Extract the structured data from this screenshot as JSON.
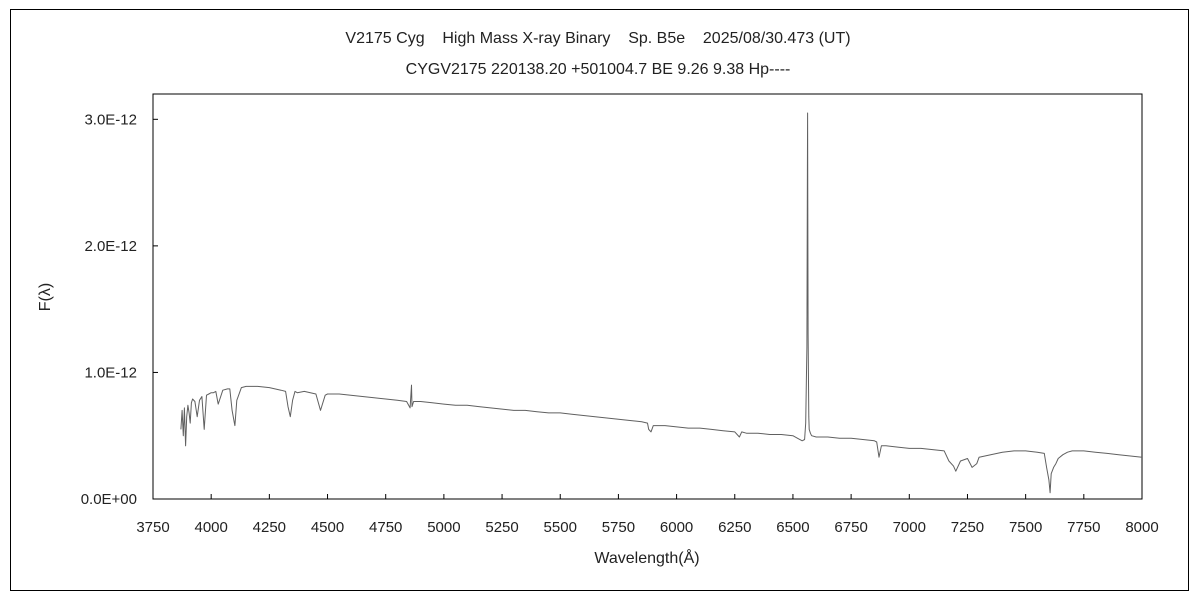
{
  "chart_data": {
    "type": "line",
    "title": "V2175 Cyg    High Mass X-ray Binary    Sp. B5e    2025/08/30.473 (UT)",
    "subtitle": "CYGV2175 220138.20 +501004.7 BE 9.26 9.38 Hp----",
    "xlabel": "Wavelength(Å)",
    "ylabel": "F(λ)",
    "xlim": [
      3750,
      8000
    ],
    "ylim": [
      0,
      3.2e-12
    ],
    "x_ticks": [
      3750,
      4000,
      4250,
      4500,
      4750,
      5000,
      5250,
      5500,
      5750,
      6000,
      6250,
      6500,
      6750,
      7000,
      7250,
      7500,
      7750,
      8000
    ],
    "x_tick_labels": [
      "3750",
      "4000",
      "4250",
      "4500",
      "4750",
      "5000",
      "5250",
      "5500",
      "5750",
      "6000",
      "6250",
      "6500",
      "6750",
      "7000",
      "7250",
      "7500",
      "7750",
      "8000"
    ],
    "y_ticks": [
      0,
      1e-12,
      2e-12,
      3e-12
    ],
    "y_tick_labels": [
      "0.0E+00",
      "1.0E-12",
      "2.0E-12",
      "3.0E-12"
    ],
    "grid": false,
    "line_color": "#606060",
    "series": [
      {
        "x": [
          3870,
          3875,
          3880,
          3885,
          3890,
          3895,
          3900,
          3905,
          3910,
          3915,
          3920,
          3930,
          3940,
          3950,
          3960,
          3970,
          3980,
          3990,
          4000,
          4010,
          4020,
          4030,
          4050,
          4070,
          4080,
          4090,
          4100,
          4102,
          4110,
          4130,
          4150,
          4170,
          4200,
          4250,
          4300,
          4320,
          4330,
          4340,
          4350,
          4360,
          4370,
          4400,
          4450,
          4470,
          4490,
          4500,
          4550,
          4600,
          4650,
          4700,
          4750,
          4800,
          4840,
          4855,
          4861,
          4863,
          4870,
          4900,
          4950,
          5000,
          5050,
          5100,
          5150,
          5200,
          5250,
          5300,
          5350,
          5400,
          5450,
          5500,
          5550,
          5600,
          5650,
          5700,
          5750,
          5800,
          5850,
          5875,
          5880,
          5890,
          5900,
          5950,
          6000,
          6050,
          6100,
          6150,
          6200,
          6250,
          6270,
          6280,
          6300,
          6350,
          6400,
          6450,
          6500,
          6520,
          6540,
          6550,
          6555,
          6560,
          6562,
          6563,
          6564,
          6565,
          6568,
          6570,
          6575,
          6580,
          6600,
          6650,
          6700,
          6750,
          6800,
          6850,
          6860,
          6870,
          6880,
          6900,
          6950,
          7000,
          7050,
          7100,
          7150,
          7170,
          7190,
          7200,
          7220,
          7250,
          7270,
          7290,
          7300,
          7350,
          7400,
          7450,
          7500,
          7550,
          7580,
          7590,
          7600,
          7605,
          7610,
          7620,
          7630,
          7640,
          7660,
          7680,
          7700,
          7750,
          7800,
          7850,
          7900,
          7950,
          8000
        ],
        "y": [
          5.5e-13,
          7e-13,
          5e-13,
          7.2e-13,
          4.2e-13,
          6.5e-13,
          7.4e-13,
          6.8e-13,
          6e-13,
          7.6e-13,
          7.9e-13,
          7.7e-13,
          6.5e-13,
          7.8e-13,
          8.1e-13,
          5.5e-13,
          8.2e-13,
          8.3e-13,
          8.4e-13,
          8.4e-13,
          8.5e-13,
          7.5e-13,
          8.6e-13,
          8.7e-13,
          8.7e-13,
          7e-13,
          6e-13,
          5.8e-13,
          7.8e-13,
          8.8e-13,
          8.9e-13,
          8.9e-13,
          8.9e-13,
          8.8e-13,
          8.6e-13,
          8.5e-13,
          7.3e-13,
          6.5e-13,
          7.8e-13,
          8.5e-13,
          8.4e-13,
          8.5e-13,
          8.3e-13,
          7e-13,
          8.2e-13,
          8.3e-13,
          8.3e-13,
          8.2e-13,
          8.1e-13,
          8e-13,
          7.9e-13,
          7.8e-13,
          7.7e-13,
          7.2e-13,
          9e-13,
          7.3e-13,
          7.7e-13,
          7.7e-13,
          7.6e-13,
          7.5e-13,
          7.4e-13,
          7.4e-13,
          7.3e-13,
          7.2e-13,
          7.1e-13,
          7e-13,
          7e-13,
          6.9e-13,
          6.8e-13,
          6.8e-13,
          6.7e-13,
          6.6e-13,
          6.5e-13,
          6.4e-13,
          6.3e-13,
          6.2e-13,
          6.1e-13,
          6e-13,
          5.5e-13,
          5.3e-13,
          5.8e-13,
          5.8e-13,
          5.7e-13,
          5.6e-13,
          5.6e-13,
          5.5e-13,
          5.4e-13,
          5.3e-13,
          4.9e-13,
          5.3e-13,
          5.2e-13,
          5.2e-13,
          5.1e-13,
          5.1e-13,
          5e-13,
          4.8e-13,
          4.6e-13,
          4.7e-13,
          6e-13,
          1.2e-12,
          2.6e-12,
          3.05e-12,
          2.3e-12,
          1.3e-12,
          6.5e-13,
          5.5e-13,
          5.2e-13,
          5e-13,
          4.9e-13,
          4.9e-13,
          4.8e-13,
          4.8e-13,
          4.7e-13,
          4.6e-13,
          4.5e-13,
          3.3e-13,
          4.2e-13,
          4.2e-13,
          4.1e-13,
          4e-13,
          4e-13,
          3.9e-13,
          3.8e-13,
          3e-13,
          2.6e-13,
          2.2e-13,
          3e-13,
          3.2e-13,
          2.5e-13,
          2.8e-13,
          3.3e-13,
          3.5e-13,
          3.7e-13,
          3.8e-13,
          3.8e-13,
          3.7e-13,
          3.6e-13,
          2.5e-13,
          1.5e-13,
          5e-14,
          2e-13,
          2.5e-13,
          2.8e-13,
          3.2e-13,
          3.5e-13,
          3.7e-13,
          3.8e-13,
          3.8e-13,
          3.7e-13,
          3.6e-13,
          3.5e-13,
          3.4e-13,
          3.3e-13
        ]
      }
    ]
  }
}
